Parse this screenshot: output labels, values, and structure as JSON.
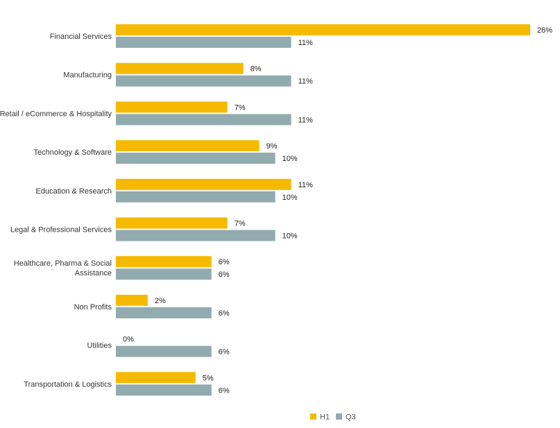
{
  "chart_data": {
    "type": "bar",
    "orientation": "horizontal",
    "title": "",
    "xlabel": "",
    "ylabel": "",
    "xlim": [
      0,
      26
    ],
    "grid": false,
    "legend_position": "bottom-center",
    "categories": [
      "Financial Services",
      "Manufacturing",
      "Retail / eCommerce & Hospitality",
      "Technology & Software",
      "Education & Research",
      "Legal & Professional Services",
      "Healthcare, Pharma & Social Assistance",
      "Non Profits",
      "Utilities",
      "Transportation & Logistics"
    ],
    "category_lines": [
      [
        "Financial Services"
      ],
      [
        "Manufacturing"
      ],
      [
        "Retail / eCommerce & Hospitality"
      ],
      [
        "Technology & Software"
      ],
      [
        "Education & Research"
      ],
      [
        "Legal & Professional Services"
      ],
      [
        "Healthcare, Pharma & Social",
        "Assistance"
      ],
      [
        "Non Profits"
      ],
      [
        "Utilities"
      ],
      [
        "Transportation & Logistics"
      ]
    ],
    "series": [
      {
        "name": "H1",
        "color": "#F5BA00",
        "values": [
          26,
          8,
          7,
          9,
          11,
          7,
          6,
          2,
          0,
          5
        ],
        "labels": [
          "26%",
          "8%",
          "7%",
          "9%",
          "11%",
          "7%",
          "6%",
          "2%",
          "0%",
          "5%"
        ]
      },
      {
        "name": "Q3",
        "color": "#91ABAF",
        "values": [
          11,
          11,
          11,
          10,
          10,
          10,
          6,
          6,
          6,
          6
        ],
        "labels": [
          "11%",
          "11%",
          "11%",
          "10%",
          "10%",
          "10%",
          "6%",
          "6%",
          "6%",
          "6%"
        ]
      }
    ]
  }
}
